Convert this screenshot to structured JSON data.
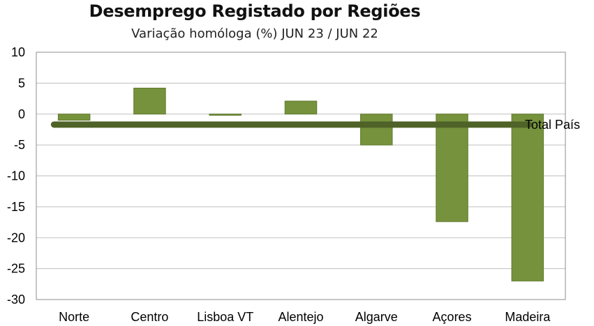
{
  "chart_data": {
    "type": "bar",
    "title": "Desemprego Registado por Regiões",
    "subtitle": "Variação homóloga (%) JUN 23 / JUN 22",
    "xlabel": "",
    "ylabel": "",
    "categories": [
      "Norte",
      "Centro",
      "Lisboa VT",
      "Alentejo",
      "Algarve",
      "Açores",
      "Madeira"
    ],
    "series": [
      {
        "values": [
          -1.0,
          4.2,
          -0.2,
          2.1,
          -5.0,
          -17.4,
          -27.0
        ]
      }
    ],
    "reference_line": {
      "name": "Total  País",
      "value": -1.7
    },
    "ylim": [
      -30,
      10
    ],
    "yticks": [
      10,
      5,
      0,
      -5,
      -10,
      -15,
      -20,
      -25,
      -30
    ],
    "grid": true,
    "colors": {
      "bar": "#76923c",
      "bar_edge": "#5f7a2e",
      "reference_line": "#4f6228",
      "grid": "#bfbfbf",
      "plot_border": "#8c8c8c"
    }
  }
}
